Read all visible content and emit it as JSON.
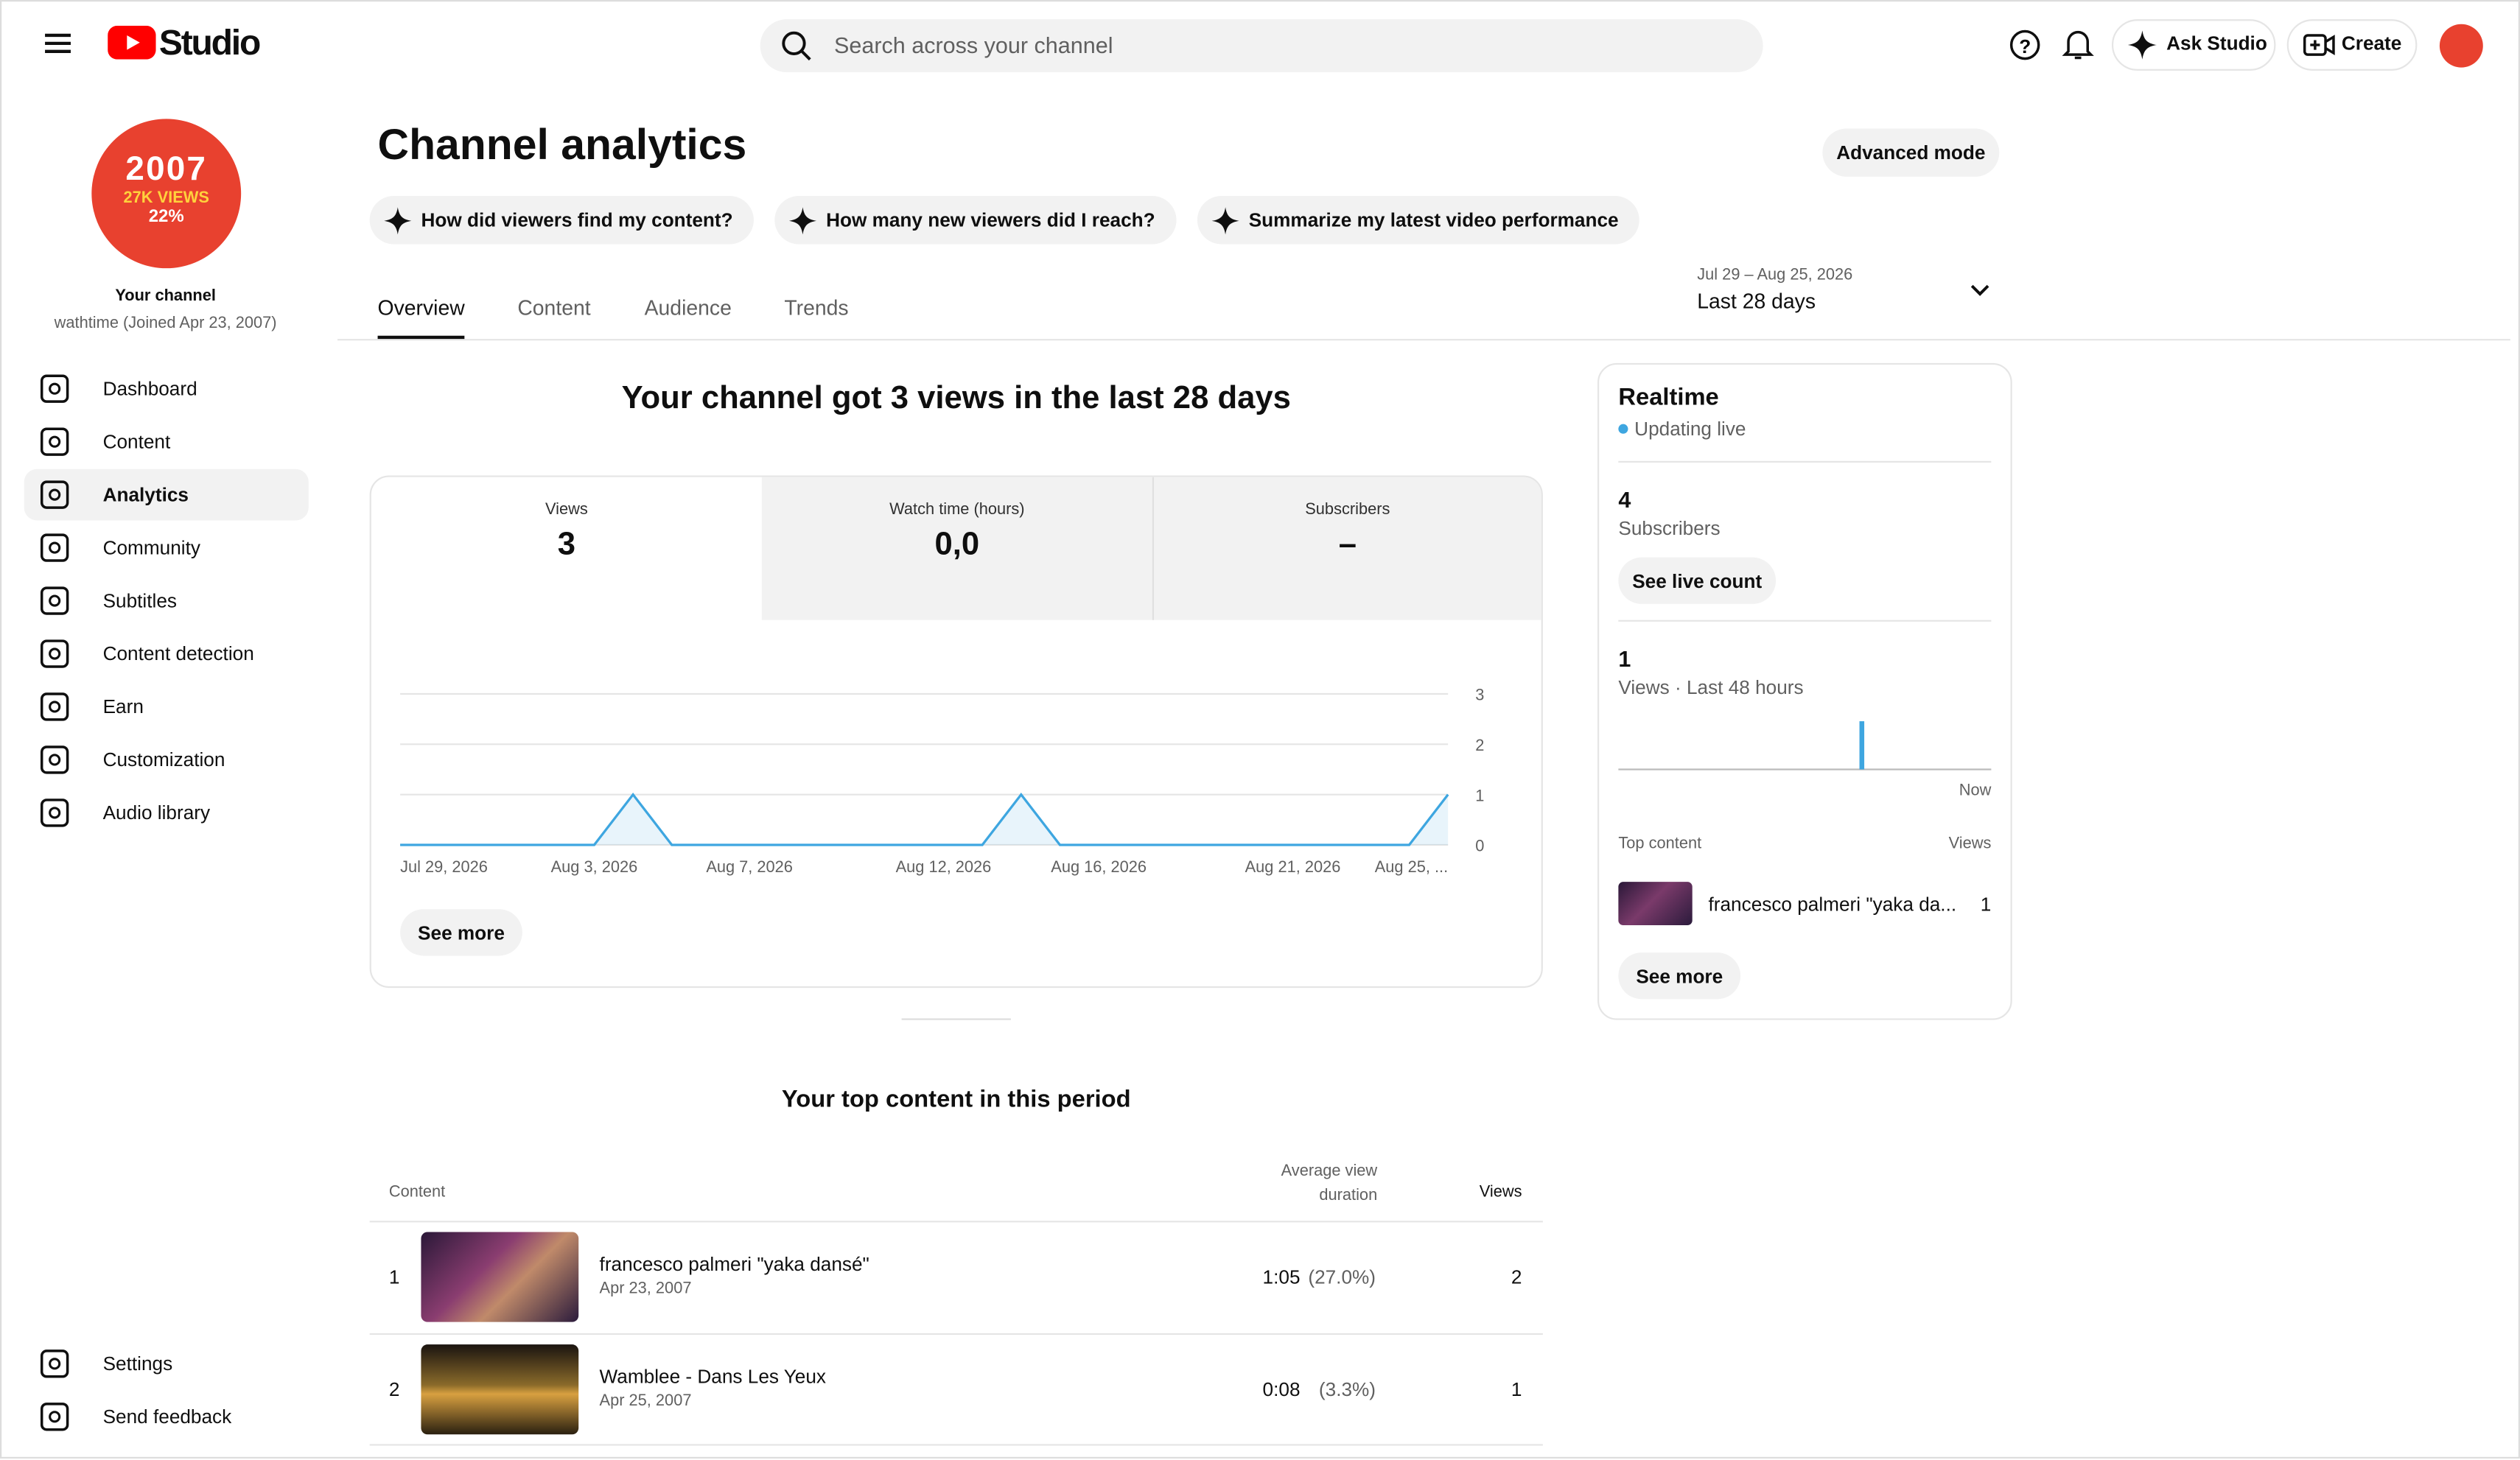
{
  "header": {
    "logo": "Studio",
    "search_placeholder": "Search across your channel",
    "ask": "Ask Studio",
    "create": "Create"
  },
  "sidebar": {
    "avatar": {
      "year": "2007",
      "views": "27K VIEWS",
      "pct": "22%"
    },
    "channel_label": "Your channel",
    "channel_meta": "wathtime (Joined Apr 23, 2007)",
    "nav": [
      "Dashboard",
      "Content",
      "Analytics",
      "Community",
      "Subtitles",
      "Content detection",
      "Earn",
      "Customization",
      "Audio library"
    ],
    "footer": [
      "Settings",
      "Send feedback"
    ]
  },
  "page": {
    "title": "Channel analytics",
    "advanced": "Advanced mode",
    "prompts": [
      "How did viewers find my content?",
      "How many new viewers did I reach?",
      "Summarize my latest video performance"
    ],
    "date_range": {
      "dates": "Jul 29 – Aug 25, 2026",
      "label": "Last 28 days"
    },
    "tabs": [
      "Overview",
      "Content",
      "Audience",
      "Trends"
    ]
  },
  "summary": {
    "headline": "Your channel got 3 views in the last 28 days",
    "metrics": [
      {
        "label": "Views",
        "value": "3"
      },
      {
        "label": "Watch time (hours)",
        "value": "0,0"
      },
      {
        "label": "Subscribers",
        "value": "–"
      }
    ],
    "see_more": "See more"
  },
  "views_chart": {
    "type": "line",
    "categories": [
      "Jul 29, 2026",
      null,
      null,
      null,
      null,
      "Aug 3, 2026",
      null,
      null,
      null,
      "Aug 7, 2026",
      null,
      null,
      null,
      null,
      "Aug 12, 2026",
      null,
      null,
      null,
      "Aug 16, 2026",
      null,
      null,
      null,
      null,
      "Aug 21, 2026",
      null,
      null,
      null,
      "Aug 25, ..."
    ],
    "values": [
      0,
      0,
      0,
      0,
      0,
      0,
      1,
      0,
      0,
      0,
      0,
      0,
      0,
      0,
      0,
      0,
      1,
      0,
      0,
      0,
      0,
      0,
      0,
      0,
      0,
      0,
      0,
      1
    ],
    "ylim": [
      0,
      3
    ],
    "yticks": [
      0,
      1,
      2,
      3
    ],
    "color": "#3ea6e0",
    "grid": true
  },
  "realtime": {
    "title": "Realtime",
    "status": "Updating live",
    "subscribers": 4,
    "subscribers_label": "Subscribers",
    "live_button": "See live count",
    "views": 1,
    "views_label": "Views · Last 48 hours",
    "now": "Now",
    "top_label": "Top content",
    "views_col": "Views",
    "top_item": {
      "title": "francesco palmeri \"yaka da...",
      "views": 1
    },
    "see_more": "See more"
  },
  "top_content": {
    "title": "Your top content in this period",
    "columns": [
      "Content",
      "Average view duration",
      "Views"
    ],
    "rows": [
      {
        "rank": 1,
        "title": "francesco palmeri \"yaka dansé\"",
        "date": "Apr 23, 2007",
        "duration": "1:05",
        "percent": "(27.0%)",
        "views": 2
      },
      {
        "rank": 2,
        "title": "Wamblee - Dans Les Yeux",
        "date": "Apr 25, 2007",
        "duration": "0:08",
        "percent": "(3.3%)",
        "views": 1
      }
    ]
  }
}
